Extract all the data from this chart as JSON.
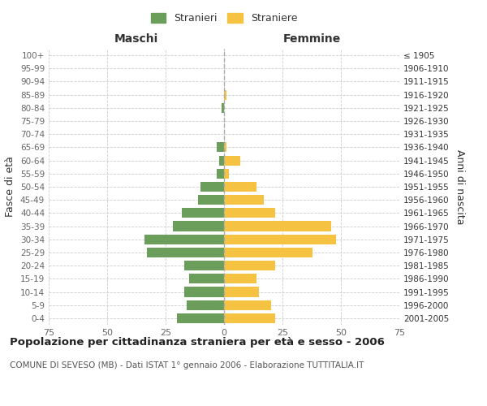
{
  "age_groups": [
    "0-4",
    "5-9",
    "10-14",
    "15-19",
    "20-24",
    "25-29",
    "30-34",
    "35-39",
    "40-44",
    "45-49",
    "50-54",
    "55-59",
    "60-64",
    "65-69",
    "70-74",
    "75-79",
    "80-84",
    "85-89",
    "90-94",
    "95-99",
    "100+"
  ],
  "birth_years": [
    "2001-2005",
    "1996-2000",
    "1991-1995",
    "1986-1990",
    "1981-1985",
    "1976-1980",
    "1971-1975",
    "1966-1970",
    "1961-1965",
    "1956-1960",
    "1951-1955",
    "1946-1950",
    "1941-1945",
    "1936-1940",
    "1931-1935",
    "1926-1930",
    "1921-1925",
    "1916-1920",
    "1911-1915",
    "1906-1910",
    "≤ 1905"
  ],
  "males": [
    20,
    16,
    17,
    15,
    17,
    33,
    34,
    22,
    18,
    11,
    10,
    3,
    2,
    3,
    0,
    0,
    1,
    0,
    0,
    0,
    0
  ],
  "females": [
    22,
    20,
    15,
    14,
    22,
    38,
    48,
    46,
    22,
    17,
    14,
    2,
    7,
    1,
    0,
    0,
    0,
    1,
    0,
    0,
    0
  ],
  "male_color": "#6a9e5a",
  "female_color": "#f5c242",
  "background_color": "#ffffff",
  "grid_color": "#cccccc",
  "xlim": 75,
  "title": "Popolazione per cittadinanza straniera per età e sesso - 2006",
  "subtitle": "COMUNE DI SEVESO (MB) - Dati ISTAT 1° gennaio 2006 - Elaborazione TUTTITALIA.IT",
  "xlabel_left": "Maschi",
  "xlabel_right": "Femmine",
  "ylabel_left": "Fasce di età",
  "ylabel_right": "Anni di nascita",
  "legend_male": "Stranieri",
  "legend_female": "Straniere",
  "tick_color": "#666666",
  "label_color": "#333333",
  "title_fontsize": 9.5,
  "subtitle_fontsize": 7.5
}
